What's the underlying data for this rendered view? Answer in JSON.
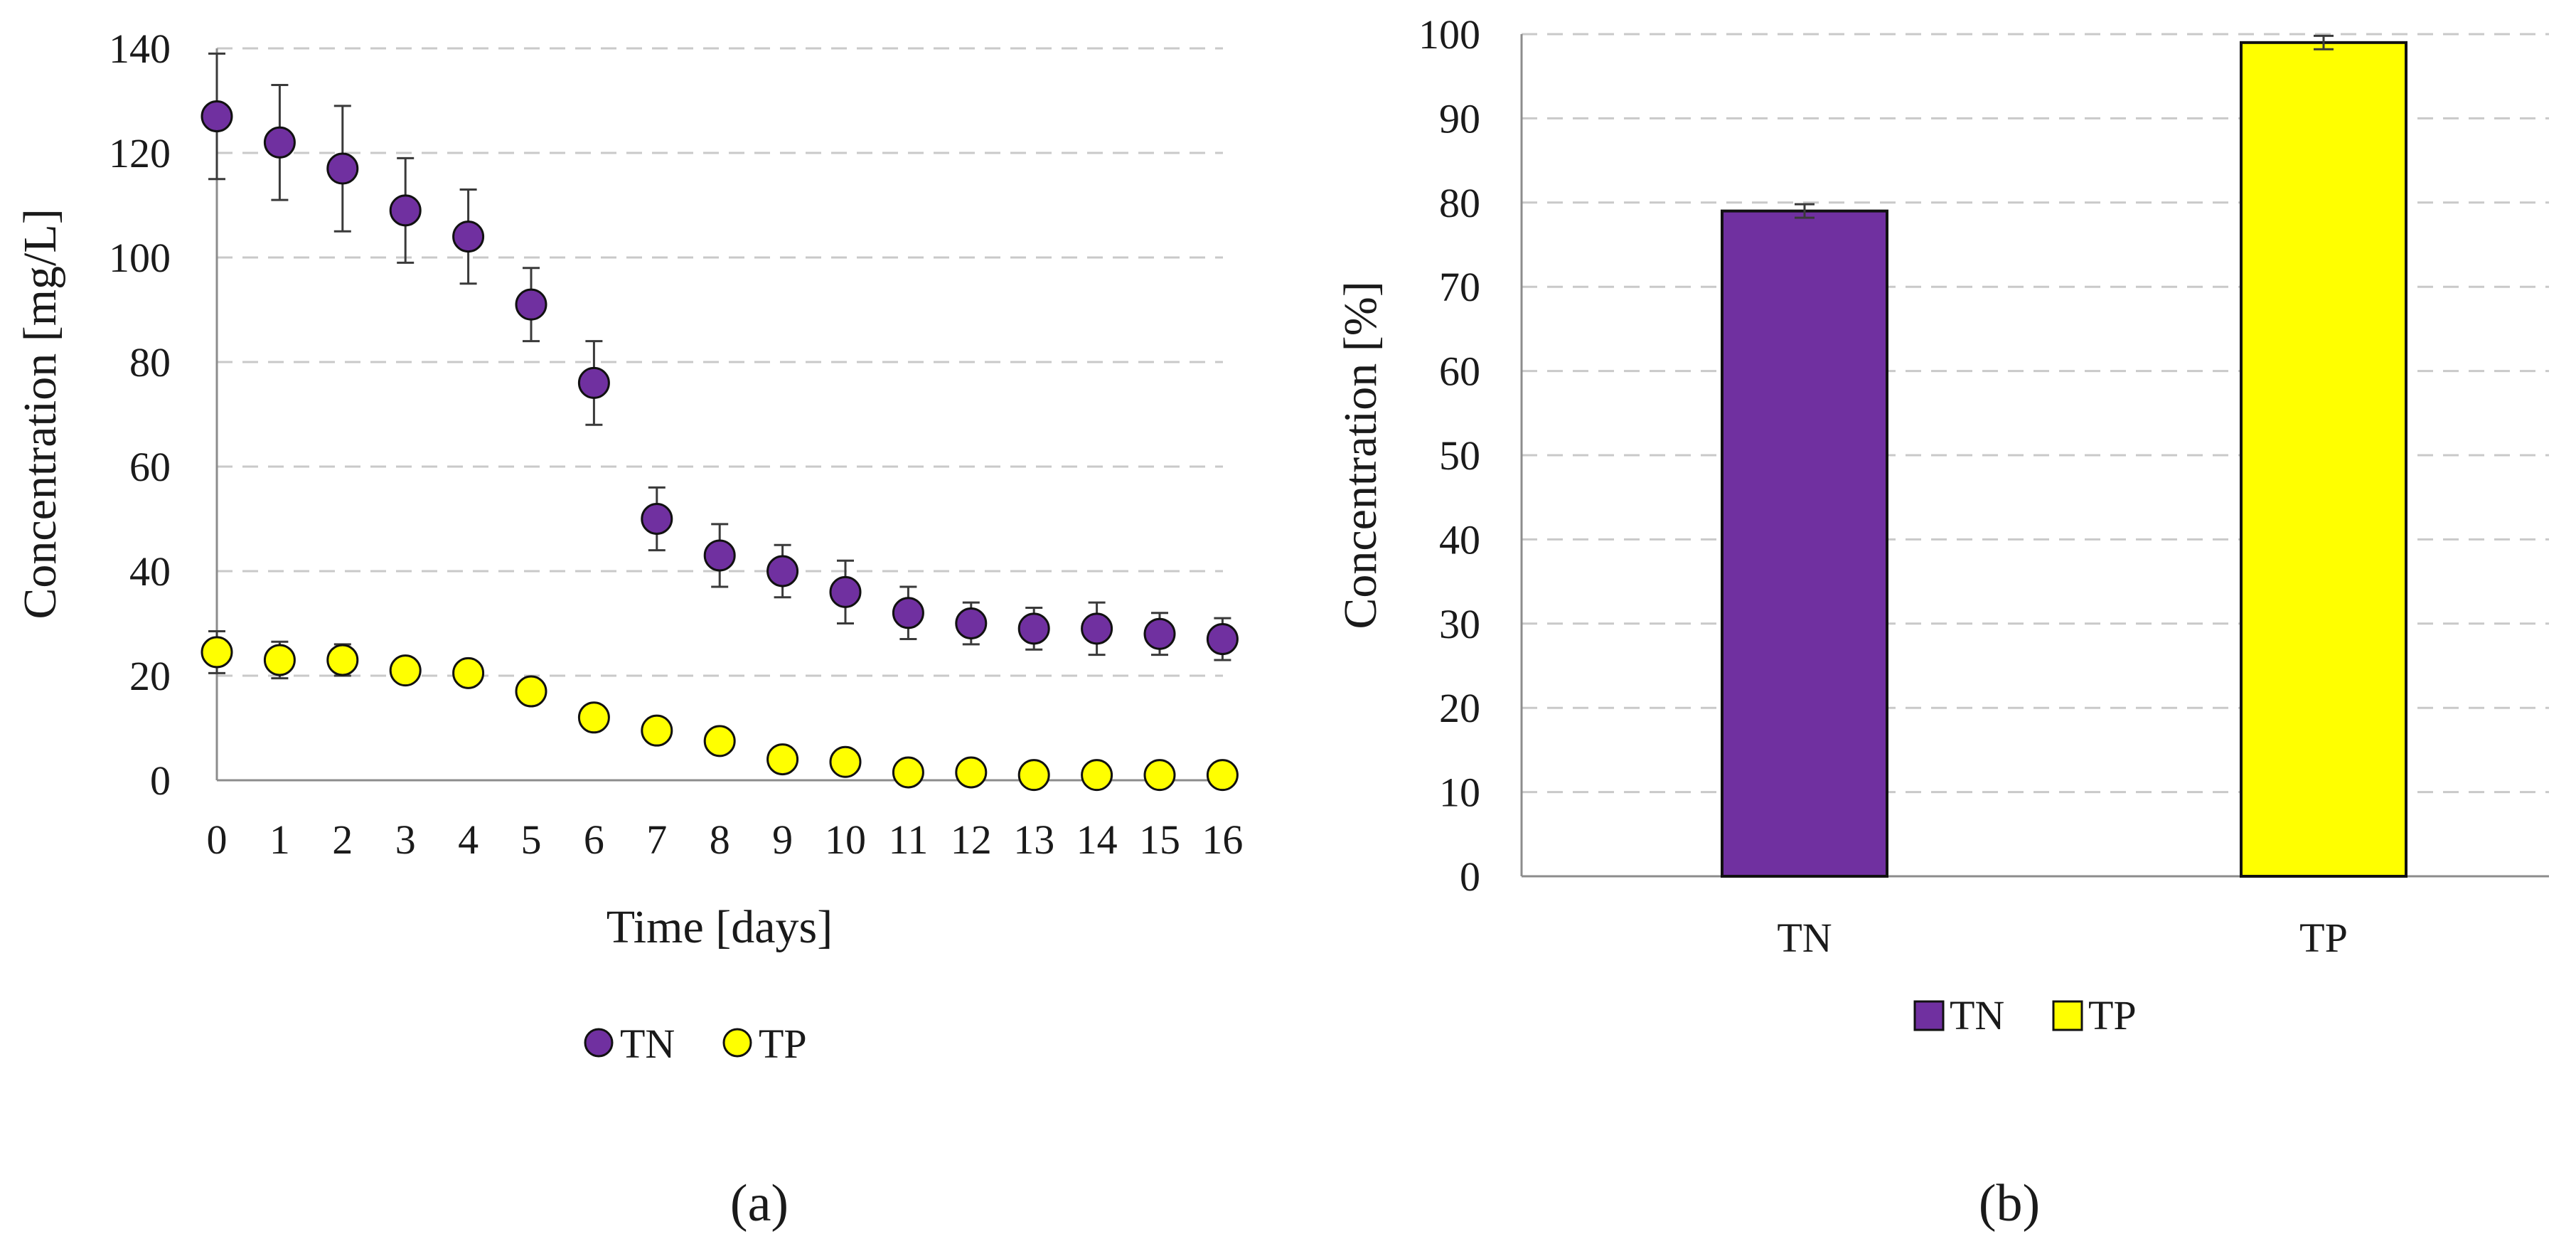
{
  "chart_data": [
    {
      "type": "scatter",
      "caption": "(a)",
      "xlabel": "Time [days]",
      "ylabel": "Concentration [mg/L]",
      "xlim": [
        0,
        16
      ],
      "ylim": [
        0,
        140
      ],
      "yticks": [
        0,
        20,
        40,
        60,
        80,
        100,
        120,
        140
      ],
      "xticks": [
        0,
        1,
        2,
        3,
        4,
        5,
        6,
        7,
        8,
        9,
        10,
        11,
        12,
        13,
        14,
        15,
        16
      ],
      "grid": true,
      "legend_position": "bottom",
      "x": [
        0,
        1,
        2,
        3,
        4,
        5,
        6,
        7,
        8,
        9,
        10,
        11,
        12,
        13,
        14,
        15,
        16
      ],
      "series": [
        {
          "name": "TN",
          "color": "#7030a0",
          "values": [
            127,
            122,
            117,
            109,
            104,
            91,
            76,
            50,
            43,
            40,
            36,
            32,
            30,
            29,
            29,
            28,
            27
          ],
          "errors": [
            12,
            11,
            12,
            10,
            9,
            7,
            8,
            6,
            6,
            5,
            6,
            5,
            4,
            4,
            5,
            4,
            4
          ]
        },
        {
          "name": "TP",
          "color": "#ffff00",
          "values": [
            24.5,
            23,
            23,
            21,
            20.5,
            17,
            12,
            9.5,
            7.5,
            4,
            3.5,
            1.5,
            1.5,
            1,
            1,
            1,
            1
          ],
          "errors": [
            4,
            3.5,
            3,
            2,
            2,
            2,
            1.5,
            1.5,
            1.5,
            1,
            1,
            1,
            1,
            0.5,
            0.5,
            0.5,
            0.5
          ]
        }
      ]
    },
    {
      "type": "bar",
      "caption": "(b)",
      "xlabel": "",
      "ylabel": "Concentration [%]",
      "ylim": [
        0,
        100
      ],
      "yticks": [
        0,
        10,
        20,
        30,
        40,
        50,
        60,
        70,
        80,
        90,
        100
      ],
      "grid": true,
      "legend_position": "bottom",
      "categories": [
        "TN",
        "TP"
      ],
      "values": [
        79,
        99
      ],
      "errors": [
        0.8,
        0.8
      ],
      "colors": [
        "#7030a0",
        "#ffff00"
      ]
    }
  ]
}
